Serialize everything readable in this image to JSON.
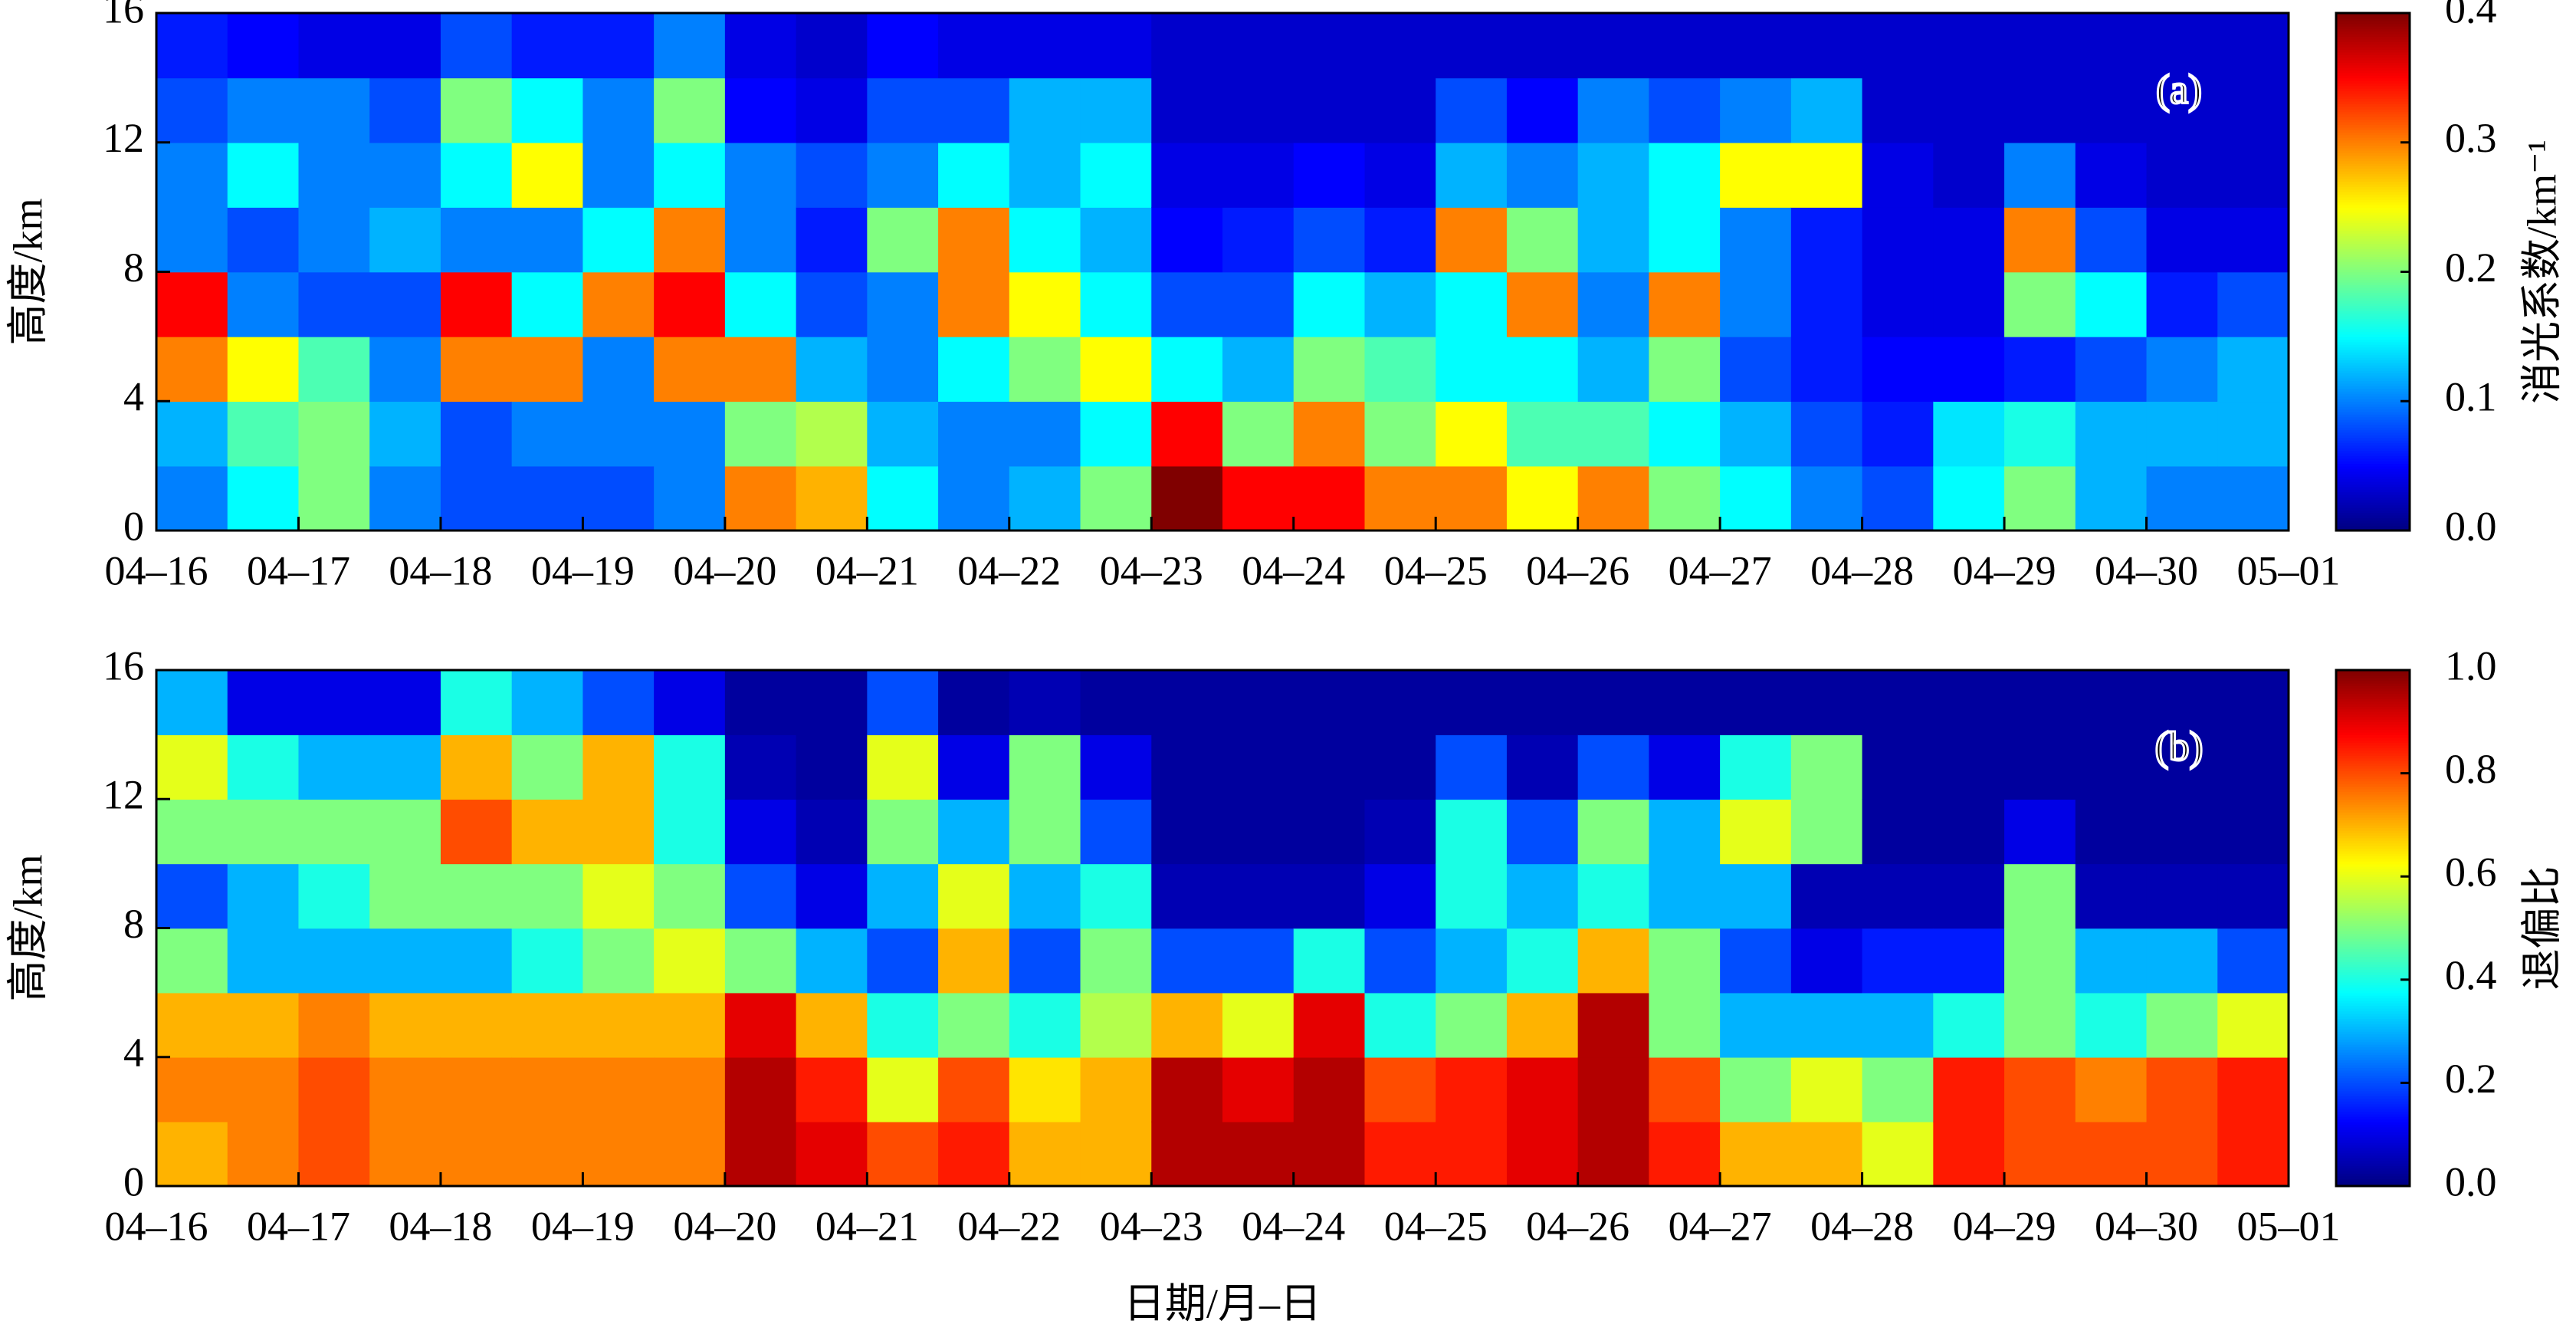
{
  "chart_data": [
    {
      "type": "heatmap",
      "annotation": "(a)",
      "ylabel": "高度/km",
      "colormap": "jet",
      "xlim": [
        0,
        15
      ],
      "xticks": [
        {
          "value": 0,
          "label": "04–16"
        },
        {
          "value": 1,
          "label": "04–17"
        },
        {
          "value": 2,
          "label": "04–18"
        },
        {
          "value": 3,
          "label": "04–19"
        },
        {
          "value": 4,
          "label": "04–20"
        },
        {
          "value": 5,
          "label": "04–21"
        },
        {
          "value": 6,
          "label": "04–22"
        },
        {
          "value": 7,
          "label": "04–23"
        },
        {
          "value": 8,
          "label": "04–24"
        },
        {
          "value": 9,
          "label": "04–25"
        },
        {
          "value": 10,
          "label": "04–26"
        },
        {
          "value": 11,
          "label": "04–27"
        },
        {
          "value": 12,
          "label": "04–28"
        },
        {
          "value": 13,
          "label": "04–29"
        },
        {
          "value": 14,
          "label": "04–30"
        },
        {
          "value": 15,
          "label": "05–01"
        }
      ],
      "ylim": [
        0,
        16
      ],
      "yticks": [
        0,
        4,
        8,
        12,
        16
      ],
      "colorbar_label": "消光系数/km⁻¹",
      "clim": [
        0,
        0.4
      ],
      "cticks": [
        {
          "value": 0,
          "label": "0.0"
        },
        0.1,
        0.2,
        0.3,
        0.4
      ],
      "values": [
        [
          0.1,
          0.12,
          0.3,
          0.35,
          0.1,
          0.1,
          0.08,
          0.06
        ],
        [
          0.15,
          0.18,
          0.25,
          0.1,
          0.08,
          0.15,
          0.1,
          0.05
        ],
        [
          0.2,
          0.2,
          0.18,
          0.08,
          0.1,
          0.1,
          0.1,
          0.04
        ],
        [
          0.1,
          0.12,
          0.1,
          0.08,
          0.12,
          0.1,
          0.08,
          0.04
        ],
        [
          0.08,
          0.08,
          0.3,
          0.35,
          0.1,
          0.15,
          0.2,
          0.08
        ],
        [
          0.08,
          0.1,
          0.3,
          0.15,
          0.1,
          0.25,
          0.15,
          0.06
        ],
        [
          0.08,
          0.1,
          0.1,
          0.3,
          0.15,
          0.1,
          0.1,
          0.06
        ],
        [
          0.1,
          0.1,
          0.3,
          0.35,
          0.3,
          0.15,
          0.2,
          0.1
        ],
        [
          0.3,
          0.2,
          0.3,
          0.15,
          0.1,
          0.1,
          0.05,
          0.04
        ],
        [
          0.28,
          0.22,
          0.12,
          0.08,
          0.06,
          0.08,
          0.04,
          0.03
        ],
        [
          0.15,
          0.12,
          0.1,
          0.1,
          0.2,
          0.1,
          0.08,
          0.05
        ],
        [
          0.1,
          0.1,
          0.15,
          0.3,
          0.3,
          0.15,
          0.08,
          0.04
        ],
        [
          0.12,
          0.1,
          0.2,
          0.25,
          0.15,
          0.12,
          0.12,
          0.04
        ],
        [
          0.2,
          0.15,
          0.25,
          0.15,
          0.12,
          0.15,
          0.12,
          0.04
        ],
        [
          0.4,
          0.35,
          0.15,
          0.08,
          0.05,
          0.04,
          0.03,
          0.03
        ],
        [
          0.35,
          0.2,
          0.12,
          0.08,
          0.06,
          0.04,
          0.03,
          0.03
        ],
        [
          0.35,
          0.3,
          0.2,
          0.15,
          0.08,
          0.05,
          0.03,
          0.03
        ],
        [
          0.3,
          0.2,
          0.18,
          0.12,
          0.06,
          0.04,
          0.03,
          0.03
        ],
        [
          0.3,
          0.25,
          0.15,
          0.15,
          0.3,
          0.12,
          0.08,
          0.03
        ],
        [
          0.25,
          0.18,
          0.15,
          0.3,
          0.2,
          0.1,
          0.05,
          0.03
        ],
        [
          0.3,
          0.18,
          0.12,
          0.1,
          0.12,
          0.12,
          0.1,
          0.03
        ],
        [
          0.2,
          0.15,
          0.2,
          0.3,
          0.15,
          0.15,
          0.08,
          0.03
        ],
        [
          0.15,
          0.12,
          0.08,
          0.1,
          0.1,
          0.25,
          0.1,
          0.03
        ],
        [
          0.1,
          0.08,
          0.06,
          0.06,
          0.06,
          0.25,
          0.12,
          0.03
        ],
        [
          0.08,
          0.06,
          0.05,
          0.04,
          0.04,
          0.04,
          0.03,
          0.03
        ],
        [
          0.15,
          0.14,
          0.05,
          0.04,
          0.04,
          0.03,
          0.03,
          0.03
        ],
        [
          0.2,
          0.16,
          0.06,
          0.2,
          0.3,
          0.1,
          0.03,
          0.03
        ],
        [
          0.12,
          0.12,
          0.08,
          0.15,
          0.08,
          0.04,
          0.03,
          0.03
        ],
        [
          0.1,
          0.12,
          0.1,
          0.06,
          0.04,
          0.03,
          0.03,
          0.03
        ],
        [
          0.1,
          0.12,
          0.12,
          0.08,
          0.04,
          0.03,
          0.03,
          0.03
        ]
      ]
    },
    {
      "type": "heatmap",
      "annotation": "(b)",
      "ylabel": "高度/km",
      "xlabel": "日期/月–日",
      "colormap": "jet",
      "xlim": [
        0,
        15
      ],
      "xticks": [
        {
          "value": 0,
          "label": "04–16"
        },
        {
          "value": 1,
          "label": "04–17"
        },
        {
          "value": 2,
          "label": "04–18"
        },
        {
          "value": 3,
          "label": "04–19"
        },
        {
          "value": 4,
          "label": "04–20"
        },
        {
          "value": 5,
          "label": "04–21"
        },
        {
          "value": 6,
          "label": "04–22"
        },
        {
          "value": 7,
          "label": "04–23"
        },
        {
          "value": 8,
          "label": "04–24"
        },
        {
          "value": 9,
          "label": "04–25"
        },
        {
          "value": 10,
          "label": "04–26"
        },
        {
          "value": 11,
          "label": "04–27"
        },
        {
          "value": 12,
          "label": "04–28"
        },
        {
          "value": 13,
          "label": "04–29"
        },
        {
          "value": 14,
          "label": "04–30"
        },
        {
          "value": 15,
          "label": "05–01"
        }
      ],
      "ylim": [
        0,
        16
      ],
      "yticks": [
        0,
        4,
        8,
        12,
        16
      ],
      "colorbar_label": "退偏比",
      "clim": [
        0,
        1
      ],
      "cticks": [
        {
          "value": 0,
          "label": "0.0"
        },
        0.2,
        0.4,
        0.6,
        0.8,
        {
          "value": 1,
          "label": "1.0"
        }
      ],
      "values": [
        [
          0.7,
          0.75,
          0.7,
          0.5,
          0.2,
          0.5,
          0.6,
          0.3
        ],
        [
          0.75,
          0.75,
          0.7,
          0.3,
          0.3,
          0.5,
          0.4,
          0.1
        ],
        [
          0.8,
          0.8,
          0.75,
          0.3,
          0.4,
          0.5,
          0.3,
          0.1
        ],
        [
          0.75,
          0.75,
          0.7,
          0.3,
          0.5,
          0.5,
          0.3,
          0.1
        ],
        [
          0.75,
          0.75,
          0.7,
          0.3,
          0.5,
          0.8,
          0.7,
          0.4
        ],
        [
          0.75,
          0.75,
          0.7,
          0.4,
          0.5,
          0.7,
          0.5,
          0.3
        ],
        [
          0.75,
          0.75,
          0.7,
          0.5,
          0.6,
          0.7,
          0.7,
          0.2
        ],
        [
          0.75,
          0.75,
          0.7,
          0.6,
          0.5,
          0.4,
          0.4,
          0.1
        ],
        [
          0.95,
          0.95,
          0.9,
          0.5,
          0.2,
          0.1,
          0.05,
          0.03
        ],
        [
          0.9,
          0.85,
          0.7,
          0.3,
          0.1,
          0.05,
          0.03,
          0.03
        ],
        [
          0.8,
          0.6,
          0.4,
          0.2,
          0.3,
          0.5,
          0.6,
          0.2
        ],
        [
          0.85,
          0.8,
          0.5,
          0.7,
          0.6,
          0.3,
          0.1,
          0.03
        ],
        [
          0.7,
          0.65,
          0.4,
          0.2,
          0.3,
          0.5,
          0.5,
          0.05
        ],
        [
          0.7,
          0.7,
          0.55,
          0.5,
          0.4,
          0.2,
          0.1,
          0.03
        ],
        [
          0.95,
          0.95,
          0.7,
          0.2,
          0.05,
          0.03,
          0.03,
          0.03
        ],
        [
          0.95,
          0.9,
          0.6,
          0.2,
          0.05,
          0.03,
          0.03,
          0.03
        ],
        [
          0.95,
          0.95,
          0.9,
          0.4,
          0.05,
          0.03,
          0.03,
          0.03
        ],
        [
          0.85,
          0.8,
          0.4,
          0.2,
          0.1,
          0.05,
          0.03,
          0.03
        ],
        [
          0.85,
          0.85,
          0.5,
          0.3,
          0.4,
          0.4,
          0.2,
          0.03
        ],
        [
          0.9,
          0.9,
          0.7,
          0.4,
          0.3,
          0.2,
          0.05,
          0.03
        ],
        [
          0.95,
          0.95,
          0.95,
          0.7,
          0.4,
          0.5,
          0.2,
          0.03
        ],
        [
          0.85,
          0.8,
          0.5,
          0.5,
          0.3,
          0.3,
          0.1,
          0.03
        ],
        [
          0.7,
          0.5,
          0.3,
          0.2,
          0.3,
          0.6,
          0.4,
          0.03
        ],
        [
          0.7,
          0.6,
          0.3,
          0.1,
          0.05,
          0.5,
          0.5,
          0.03
        ],
        [
          0.6,
          0.5,
          0.3,
          0.15,
          0.05,
          0.03,
          0.03,
          0.03
        ],
        [
          0.85,
          0.85,
          0.4,
          0.15,
          0.05,
          0.03,
          0.03,
          0.03
        ],
        [
          0.8,
          0.8,
          0.5,
          0.5,
          0.5,
          0.1,
          0.03,
          0.03
        ],
        [
          0.8,
          0.75,
          0.4,
          0.3,
          0.05,
          0.03,
          0.03,
          0.03
        ],
        [
          0.8,
          0.8,
          0.5,
          0.3,
          0.05,
          0.03,
          0.03,
          0.03
        ],
        [
          0.85,
          0.85,
          0.6,
          0.2,
          0.05,
          0.03,
          0.03,
          0.03
        ]
      ]
    }
  ]
}
